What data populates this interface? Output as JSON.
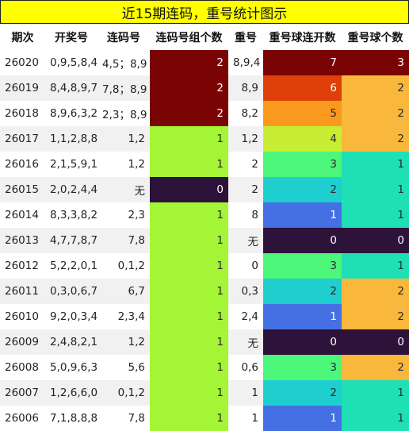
{
  "title": "近15期连码，重号统计图示",
  "headers": [
    "期次",
    "开奖号",
    "连码号",
    "连码号组个数",
    "重号",
    "重号球连开数",
    "重号球个数"
  ],
  "rows": [
    {
      "issue": "26020",
      "draw": "0,9,5,8,4",
      "consec": "4,5；8,9",
      "consec_groups": 2,
      "repeat": "8,9,4",
      "repeat_run": 7,
      "repeat_count": 3
    },
    {
      "issue": "26019",
      "draw": "8,4,8,9,7",
      "consec": "7,8；8,9",
      "consec_groups": 2,
      "repeat": "8,9",
      "repeat_run": 6,
      "repeat_count": 2
    },
    {
      "issue": "26018",
      "draw": "8,9,6,3,2",
      "consec": "2,3；8,9",
      "consec_groups": 2,
      "repeat": "8,2",
      "repeat_run": 5,
      "repeat_count": 2
    },
    {
      "issue": "26017",
      "draw": "1,1,2,8,8",
      "consec": "1,2",
      "consec_groups": 1,
      "repeat": "1,2",
      "repeat_run": 4,
      "repeat_count": 2
    },
    {
      "issue": "26016",
      "draw": "2,1,5,9,1",
      "consec": "1,2",
      "consec_groups": 1,
      "repeat": "2",
      "repeat_run": 3,
      "repeat_count": 1
    },
    {
      "issue": "26015",
      "draw": "2,0,2,4,4",
      "consec": "无",
      "consec_groups": 0,
      "repeat": "2",
      "repeat_run": 2,
      "repeat_count": 1
    },
    {
      "issue": "26014",
      "draw": "8,3,3,8,2",
      "consec": "2,3",
      "consec_groups": 1,
      "repeat": "8",
      "repeat_run": 1,
      "repeat_count": 1
    },
    {
      "issue": "26013",
      "draw": "4,7,7,8,7",
      "consec": "7,8",
      "consec_groups": 1,
      "repeat": "无",
      "repeat_run": 0,
      "repeat_count": 0
    },
    {
      "issue": "26012",
      "draw": "5,2,2,0,1",
      "consec": "0,1,2",
      "consec_groups": 1,
      "repeat": "0",
      "repeat_run": 3,
      "repeat_count": 1
    },
    {
      "issue": "26011",
      "draw": "0,3,0,6,7",
      "consec": "6,7",
      "consec_groups": 1,
      "repeat": "0,3",
      "repeat_run": 2,
      "repeat_count": 2
    },
    {
      "issue": "26010",
      "draw": "9,2,0,3,4",
      "consec": "2,3,4",
      "consec_groups": 1,
      "repeat": "2,4",
      "repeat_run": 1,
      "repeat_count": 2
    },
    {
      "issue": "26009",
      "draw": "2,4,8,2,1",
      "consec": "1,2",
      "consec_groups": 1,
      "repeat": "无",
      "repeat_run": 0,
      "repeat_count": 0
    },
    {
      "issue": "26008",
      "draw": "5,0,9,6,3",
      "consec": "5,6",
      "consec_groups": 1,
      "repeat": "0,6",
      "repeat_run": 3,
      "repeat_count": 2
    },
    {
      "issue": "26007",
      "draw": "1,2,6,6,0",
      "consec": "0,1,2",
      "consec_groups": 1,
      "repeat": "1",
      "repeat_run": 2,
      "repeat_count": 1
    },
    {
      "issue": "26006",
      "draw": "7,1,8,8,8",
      "consec": "7,8",
      "consec_groups": 1,
      "repeat": "1",
      "repeat_run": 1,
      "repeat_count": 1
    }
  ],
  "colors": {
    "title_bg": "#ffff00",
    "consec_groups": {
      "0": "#2d1239",
      "1": "#a4f535",
      "2": "#7a0403"
    },
    "repeat_run": {
      "0": "#2d1239",
      "1": "#4570e3",
      "2": "#1fcfd0",
      "3": "#4cf77a",
      "4": "#c8ee34",
      "5": "#f99a1f",
      "6": "#df3f08",
      "7": "#7a0403"
    },
    "repeat_count": {
      "0": "#2d1239",
      "1": "#1fe0b4",
      "2": "#f9b83c",
      "3": "#7a0403"
    }
  }
}
